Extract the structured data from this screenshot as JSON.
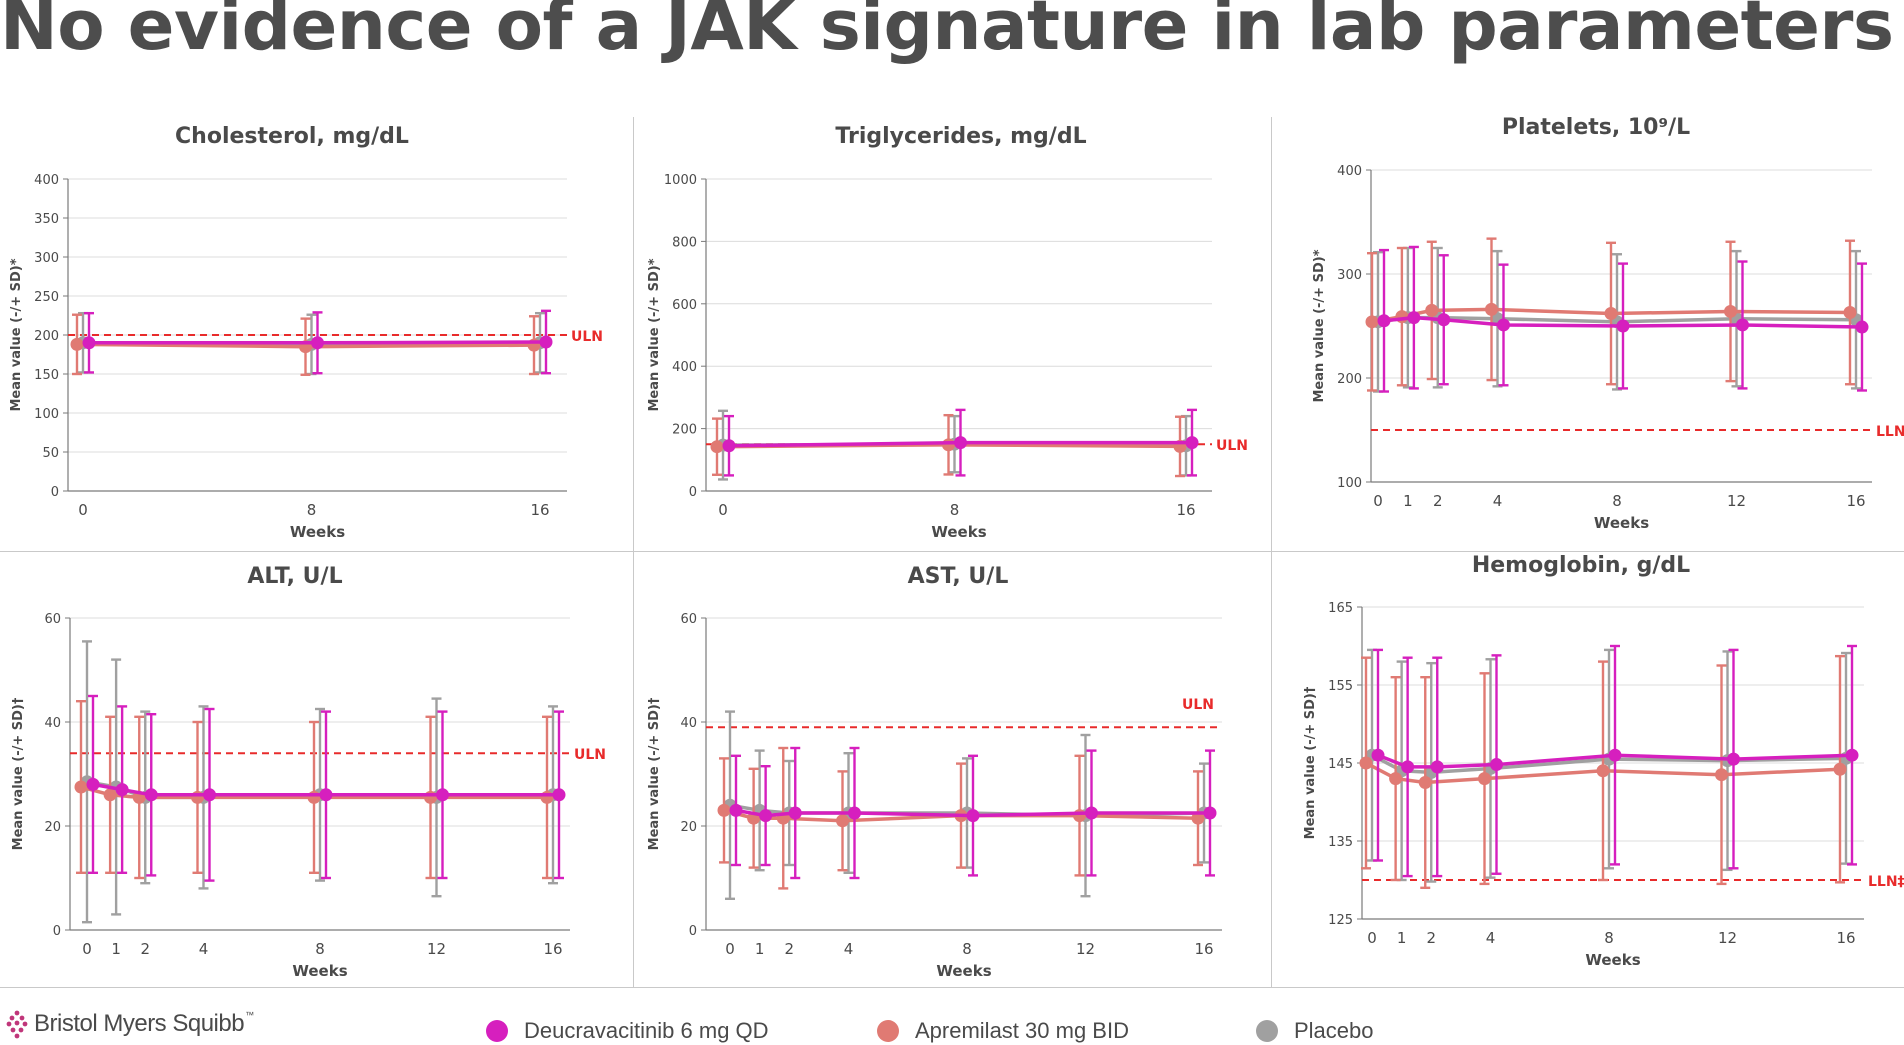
{
  "page": {
    "title": "No evidence of a JAK signature in lab parameters",
    "logo_text": "Bristol Myers Squibb",
    "logo_tm": "™"
  },
  "legend": [
    {
      "label": "Deucravacitinib 6 mg QD",
      "color": "#d61fbe"
    },
    {
      "label": "Apremilast 30 mg BID",
      "color": "#e07a73"
    },
    {
      "label": "Placebo",
      "color": "#a0a0a0"
    }
  ],
  "chart_data": [
    {
      "type": "line",
      "title": "Cholesterol, mg/dL",
      "xlabel": "Weeks",
      "ylabel": "Mean value (-/+ SD)*",
      "ylim": [
        0,
        400
      ],
      "yticks": [
        0,
        50,
        100,
        150,
        200,
        250,
        300,
        350,
        400
      ],
      "x": [
        0,
        8,
        16
      ],
      "ref_line": {
        "label": "ULN",
        "value": 200
      },
      "series": [
        {
          "name": "Deucravacitinib 6 mg QD",
          "values": [
            190,
            190,
            191
          ],
          "sd": [
            38,
            39,
            40
          ]
        },
        {
          "name": "Apremilast 30 mg BID",
          "values": [
            188,
            185,
            187
          ],
          "sd": [
            38,
            36,
            37
          ]
        },
        {
          "name": "Placebo",
          "values": [
            190,
            188,
            190
          ],
          "sd": [
            38,
            38,
            38
          ]
        }
      ]
    },
    {
      "type": "line",
      "title": "Triglycerides, mg/dL",
      "xlabel": "Weeks",
      "ylabel": "Mean value (-/+ SD)*",
      "ylim": [
        0,
        1000
      ],
      "yticks": [
        0,
        200,
        400,
        600,
        800,
        1000
      ],
      "x": [
        0,
        8,
        16
      ],
      "ref_line": {
        "label": "ULN",
        "value": 150
      },
      "series": [
        {
          "name": "Deucravacitinib 6 mg QD",
          "values": [
            145,
            155,
            155
          ],
          "sd": [
            95,
            105,
            105
          ]
        },
        {
          "name": "Apremilast 30 mg BID",
          "values": [
            142,
            148,
            143
          ],
          "sd": [
            90,
            95,
            95
          ]
        },
        {
          "name": "Placebo",
          "values": [
            147,
            150,
            145
          ],
          "sd": [
            110,
            90,
            95
          ]
        }
      ]
    },
    {
      "type": "line",
      "title": "Platelets, 10⁹/L",
      "xlabel": "Weeks",
      "ylabel": "Mean value (-/+ SD)*",
      "ylim": [
        100,
        400
      ],
      "yticks": [
        100,
        200,
        300,
        400
      ],
      "x": [
        0,
        1,
        2,
        4,
        8,
        12,
        16
      ],
      "ref_line": {
        "label": "LLN",
        "value": 150
      },
      "series": [
        {
          "name": "Deucravacitinib 6 mg QD",
          "values": [
            255,
            258,
            256,
            251,
            250,
            251,
            249
          ],
          "sd": [
            68,
            68,
            62,
            58,
            60,
            61,
            61
          ]
        },
        {
          "name": "Apremilast 30 mg BID",
          "values": [
            254,
            259,
            265,
            266,
            262,
            264,
            263
          ],
          "sd": [
            66,
            66,
            66,
            68,
            68,
            67,
            69
          ]
        },
        {
          "name": "Placebo",
          "values": [
            254,
            258,
            258,
            257,
            254,
            257,
            256
          ],
          "sd": [
            67,
            67,
            67,
            65,
            65,
            65,
            66
          ]
        }
      ]
    },
    {
      "type": "line",
      "title": "ALT, U/L",
      "xlabel": "Weeks",
      "ylabel": "Mean value (-/+ SD)†",
      "ylim": [
        0,
        60
      ],
      "yticks": [
        0,
        20,
        40,
        60
      ],
      "x": [
        0,
        1,
        2,
        4,
        8,
        12,
        16
      ],
      "ref_line": {
        "label": "ULN",
        "value": 34
      },
      "series": [
        {
          "name": "Deucravacitinib 6 mg QD",
          "values": [
            28,
            27,
            26,
            26,
            26,
            26,
            26
          ],
          "sd": [
            17,
            16,
            15.5,
            16.5,
            16,
            16,
            16
          ]
        },
        {
          "name": "Apremilast 30 mg BID",
          "values": [
            27.5,
            26,
            25.5,
            25.5,
            25.5,
            25.5,
            25.5
          ],
          "sd": [
            16.5,
            15,
            15.5,
            14.5,
            14.5,
            15.5,
            15.5
          ]
        },
        {
          "name": "Placebo",
          "values": [
            28.5,
            27.5,
            25.5,
            25.5,
            26,
            25.5,
            26
          ],
          "sd": [
            27,
            24.5,
            16.5,
            17.5,
            16.5,
            19,
            17
          ]
        }
      ]
    },
    {
      "type": "line",
      "title": "AST, U/L",
      "xlabel": "Weeks",
      "ylabel": "Mean value (-/+ SD)†",
      "ylim": [
        0,
        60
      ],
      "yticks": [
        0,
        20,
        40,
        60
      ],
      "x": [
        0,
        1,
        2,
        4,
        8,
        12,
        16
      ],
      "ref_line": {
        "label": "ULN",
        "value": 39
      },
      "series": [
        {
          "name": "Deucravacitinib 6 mg QD",
          "values": [
            23,
            22,
            22.5,
            22.5,
            22,
            22.5,
            22.5
          ],
          "sd": [
            10.5,
            9.5,
            12.5,
            12.5,
            11.5,
            12,
            12
          ]
        },
        {
          "name": "Apremilast 30 mg BID",
          "values": [
            23,
            21.5,
            21.5,
            21,
            22,
            22,
            21.5
          ],
          "sd": [
            10,
            9.5,
            13.5,
            9.5,
            10,
            11.5,
            9
          ]
        },
        {
          "name": "Placebo",
          "values": [
            24,
            23,
            22.5,
            22.5,
            22.5,
            22,
            22.5
          ],
          "sd": [
            18,
            11.5,
            10,
            11.5,
            10.5,
            15.5,
            9.5
          ]
        }
      ]
    },
    {
      "type": "line",
      "title": "Hemoglobin, g/dL",
      "xlabel": "Weeks",
      "ylabel": "Mean value (-/+ SD)†",
      "ylim": [
        125,
        165
      ],
      "yticks": [
        125,
        135,
        145,
        155,
        165
      ],
      "x": [
        0,
        1,
        2,
        4,
        8,
        12,
        16
      ],
      "ref_line": {
        "label": "LLN‡",
        "value": 130
      },
      "series": [
        {
          "name": "Deucravacitinib 6 mg QD",
          "values": [
            146,
            144.5,
            144.5,
            144.8,
            146,
            145.5,
            146
          ],
          "sd": [
            13.5,
            14,
            14,
            14,
            14,
            14,
            14
          ]
        },
        {
          "name": "Apremilast 30 mg BID",
          "values": [
            145,
            143,
            142.5,
            143,
            144,
            143.5,
            144.2
          ],
          "sd": [
            13.5,
            13,
            13.5,
            13.5,
            14,
            14,
            14.5
          ]
        },
        {
          "name": "Placebo",
          "values": [
            146,
            144,
            143.8,
            144.3,
            145.5,
            145.3,
            145.6
          ],
          "sd": [
            13.5,
            14,
            14,
            14,
            14,
            14,
            13.5
          ]
        }
      ]
    }
  ]
}
